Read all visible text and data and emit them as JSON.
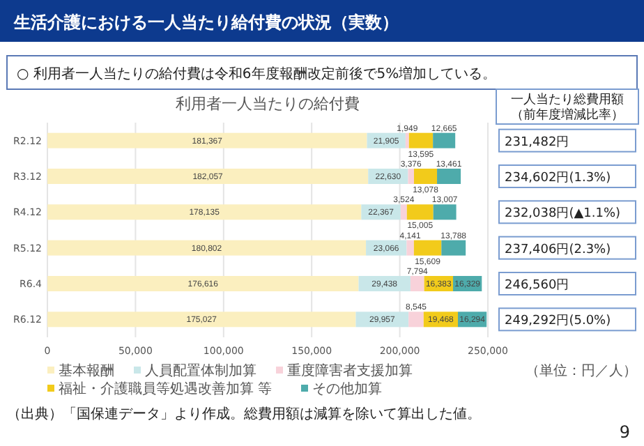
{
  "chart_data": {
    "type": "bar",
    "orientation": "horizontal",
    "stacked": true,
    "title": "生活介護における一人当たり給付費の状況（実数）",
    "subtitle": "○ 利用者一人当たりの給付費は令和6年度報酬改定前後で5%増加している。",
    "categories": [
      "R2.12",
      "R3.12",
      "R4.12",
      "R5.12",
      "R6.4",
      "R6.12"
    ],
    "series": [
      {
        "name": "基本報酬",
        "color": "#fbefbf",
        "values": [
          181367,
          182057,
          178135,
          180802,
          176616,
          175027
        ],
        "value_labels": [
          "181,367",
          "182,057",
          "178,135",
          "180,802",
          "176,616",
          "175,027"
        ]
      },
      {
        "name": "人員配置体制加算",
        "color": "#c9e7e9",
        "values": [
          21905,
          22630,
          22367,
          23066,
          29438,
          29957
        ],
        "value_labels": [
          "21,905",
          "22,630",
          "22,367",
          "23,066",
          "29,438",
          "29,957"
        ]
      },
      {
        "name": "重度障害者支援加算",
        "color": "#f8d2da",
        "values": [
          1949,
          3376,
          3524,
          4141,
          7794,
          8545
        ],
        "value_labels": [
          "1,949",
          "3,376",
          "3,524",
          "4,141",
          "7,794",
          "8,545"
        ]
      },
      {
        "name": "福祉・介護職員等処遇改善加算 等",
        "color": "#f2cb1b",
        "values": [
          13595,
          13078,
          15005,
          15609,
          16383,
          19468
        ],
        "value_labels": [
          "13,595",
          "13,078",
          "15,005",
          "15,609",
          "16,383",
          "19,468"
        ]
      },
      {
        "name": "その他加算",
        "color": "#4eabab",
        "values": [
          12665,
          13461,
          13007,
          13788,
          16329,
          16294
        ],
        "value_labels": [
          "12,665",
          "13,461",
          "13,007",
          "13,788",
          "16,329",
          "16,294"
        ]
      }
    ],
    "xlim": [
      0,
      250000
    ],
    "xticks": [
      0,
      {
        "value": 50000,
        "label": "50,000"
      },
      {
        "value": 100000,
        "label": "100,000"
      },
      {
        "value": 150000,
        "label": "150,000"
      },
      {
        "value": 200000,
        "label": "200,000"
      },
      {
        "value": 250000,
        "label": "250,000"
      }
    ],
    "grid": "x",
    "legend": "bottom",
    "annotations": [
      "利用者一人当たりの給付費",
      "一人当たり総費用額",
      "（前年度増減比率）",
      "231,482円",
      "234,602円(1.3%)",
      "232,038円(▲1.1%)",
      "237,406円(2.3%)",
      "246,560円",
      "249,292円(5.0%)",
      "（単位：円／人）",
      "（出典）「国保連データ」より作成。総費用額は減算を除いて算出した値。",
      "9"
    ]
  }
}
